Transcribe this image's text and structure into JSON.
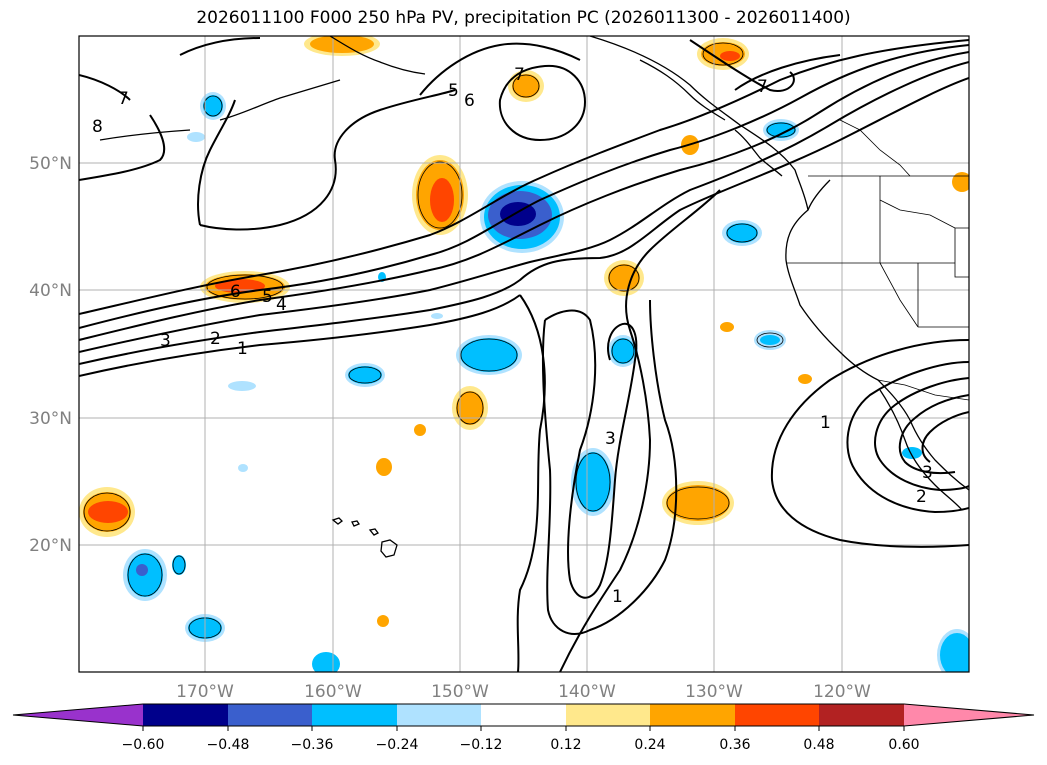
{
  "title": "2026011100 F000 250 hPa PV, precipitation PC (2026011300 - 2026011400)",
  "map": {
    "lat_labels": [
      "50°N",
      "40°N",
      "30°N",
      "20°N"
    ],
    "lon_labels": [
      "170°W",
      "160°W",
      "150°W",
      "140°W",
      "130°W",
      "120°W"
    ],
    "contour_labels": [
      "7",
      "8",
      "5",
      "6",
      "7",
      "7",
      "6",
      "5",
      "4",
      "3",
      "2",
      "1",
      "3",
      "1",
      "1",
      "3",
      "2"
    ]
  },
  "colorbar": {
    "colors": [
      "#9932cc",
      "#00008b",
      "#3a5fcd",
      "#00bfff",
      "#afe2ff",
      "#ffffff",
      "#ffe88c",
      "#ffa500",
      "#ff4500",
      "#b22222",
      "#ff88aa"
    ],
    "tick_labels": [
      "−0.60",
      "−0.48",
      "−0.36",
      "−0.24",
      "−0.12",
      "0.12",
      "0.24",
      "0.36",
      "0.48",
      "0.60"
    ]
  }
}
